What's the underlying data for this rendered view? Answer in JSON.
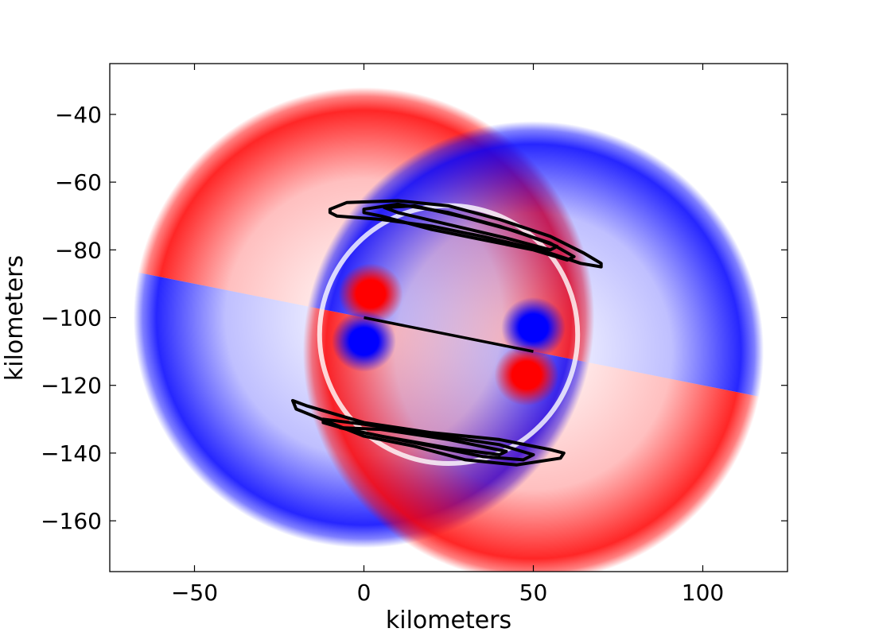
{
  "chart_data": {
    "type": "heatmap",
    "xlabel": "kilometers",
    "ylabel": "kilometers",
    "xlim": [
      -75,
      125
    ],
    "ylim": [
      -175,
      -25
    ],
    "xticks": [
      {
        "value": -50,
        "label": "−50"
      },
      {
        "value": 0,
        "label": "0"
      },
      {
        "value": 50,
        "label": "50"
      },
      {
        "value": 100,
        "label": "100"
      }
    ],
    "yticks": [
      {
        "value": -40,
        "label": "−40"
      },
      {
        "value": -60,
        "label": "−60"
      },
      {
        "value": -80,
        "label": "−80"
      },
      {
        "value": -100,
        "label": "−100"
      },
      {
        "value": -120,
        "label": "−120"
      },
      {
        "value": -140,
        "label": "−140"
      },
      {
        "value": -160,
        "label": "−160"
      }
    ],
    "grid": false,
    "colors": {
      "positive": "#ff0000",
      "negative": "#0000ff",
      "neutral": "#ffffff",
      "contour": "#000000"
    },
    "fault_line": {
      "start": [
        0,
        -100
      ],
      "end": [
        50,
        -110
      ]
    },
    "wavefronts": [
      {
        "center": [
          0,
          -100
        ],
        "radius": 68
      },
      {
        "center": [
          50,
          -110
        ],
        "radius": 68
      }
    ],
    "lobes": [
      {
        "center": [
          2,
          -93
        ],
        "sign": "positive"
      },
      {
        "center": [
          0,
          -107
        ],
        "sign": "negative"
      },
      {
        "center": [
          50,
          -103
        ],
        "sign": "negative"
      },
      {
        "center": [
          48,
          -117
        ],
        "sign": "positive"
      }
    ],
    "contours": [
      {
        "name": "upper-outer",
        "points": [
          [
            -10,
            -68
          ],
          [
            -5,
            -66
          ],
          [
            10,
            -65.5
          ],
          [
            25,
            -67
          ],
          [
            40,
            -71
          ],
          [
            55,
            -76
          ],
          [
            65,
            -81
          ],
          [
            70,
            -84
          ],
          [
            70,
            -85
          ],
          [
            64,
            -84
          ],
          [
            52,
            -80
          ],
          [
            35,
            -76
          ],
          [
            20,
            -73
          ],
          [
            5,
            -71
          ],
          [
            -8,
            -70
          ],
          [
            -10,
            -69
          ]
        ]
      },
      {
        "name": "upper-inner",
        "points": [
          [
            0,
            -68
          ],
          [
            10,
            -66.5
          ],
          [
            25,
            -69
          ],
          [
            40,
            -73
          ],
          [
            55,
            -78
          ],
          [
            62,
            -82
          ],
          [
            60,
            -83
          ],
          [
            50,
            -80
          ],
          [
            35,
            -77
          ],
          [
            20,
            -74
          ],
          [
            5,
            -70
          ],
          [
            0,
            -69
          ]
        ]
      },
      {
        "name": "upper-inner-2",
        "points": [
          [
            6,
            -67.5
          ],
          [
            15,
            -67
          ],
          [
            30,
            -70.5
          ],
          [
            45,
            -74.5
          ],
          [
            57,
            -79
          ],
          [
            55,
            -80
          ],
          [
            42,
            -76.5
          ],
          [
            25,
            -72.5
          ],
          [
            10,
            -69
          ]
        ]
      },
      {
        "name": "lower-outer",
        "points": [
          [
            -21,
            -124.5
          ],
          [
            -17,
            -126
          ],
          [
            0,
            -131
          ],
          [
            20,
            -134
          ],
          [
            40,
            -136
          ],
          [
            55,
            -139
          ],
          [
            59,
            -140
          ],
          [
            58,
            -141.5
          ],
          [
            45,
            -143.5
          ],
          [
            30,
            -142
          ],
          [
            15,
            -138
          ],
          [
            0,
            -135
          ],
          [
            -10,
            -131
          ],
          [
            -20,
            -127
          ]
        ]
      },
      {
        "name": "lower-inner",
        "points": [
          [
            -12,
            -130
          ],
          [
            0,
            -131.5
          ],
          [
            20,
            -134.5
          ],
          [
            40,
            -137.5
          ],
          [
            50,
            -140.5
          ],
          [
            47,
            -142
          ],
          [
            35,
            -141
          ],
          [
            15,
            -137
          ],
          [
            -5,
            -133
          ],
          [
            -12,
            -131
          ]
        ]
      },
      {
        "name": "lower-inner-2",
        "points": [
          [
            -7,
            -132.5
          ],
          [
            5,
            -133
          ],
          [
            25,
            -136
          ],
          [
            42,
            -139.5
          ],
          [
            40,
            -140.5
          ],
          [
            25,
            -138.5
          ],
          [
            5,
            -135
          ]
        ]
      }
    ]
  }
}
